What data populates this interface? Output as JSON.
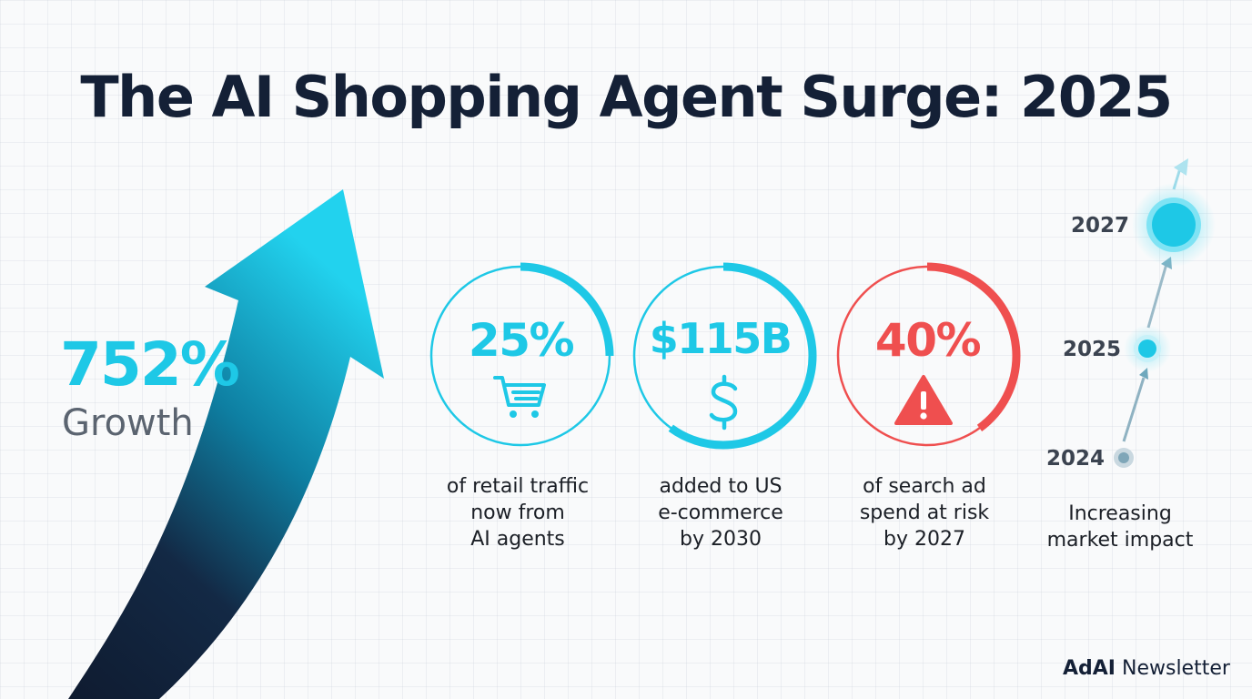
{
  "title": "The AI Shopping Agent Surge: 2025",
  "growth": {
    "value": "752%",
    "label": "Growth"
  },
  "stats": [
    {
      "value": "25%",
      "icon": "shopping-cart-icon",
      "desc": [
        "of retail traffic",
        "now from",
        "AI agents"
      ],
      "color": "#1ec8e6",
      "progress": 0.25
    },
    {
      "value": "$115B",
      "icon": "dollar-sign-icon",
      "desc": [
        "added to US",
        "e-commerce",
        "by 2030"
      ],
      "color": "#1ec8e6",
      "progress": 0.6
    },
    {
      "value": "40%",
      "icon": "warning-icon",
      "desc": [
        "of search ad",
        "spend at risk",
        "by 2027"
      ],
      "color": "#ef4f4f",
      "progress": 0.4
    }
  ],
  "timeline": {
    "years": [
      "2027",
      "2025",
      "2024"
    ],
    "caption": [
      "Increasing",
      "market impact"
    ]
  },
  "footer": {
    "brand": "AdAI",
    "label": "Newsletter"
  },
  "colors": {
    "accent": "#1ec8e6",
    "danger": "#ef4f4f",
    "dark": "#142036"
  }
}
